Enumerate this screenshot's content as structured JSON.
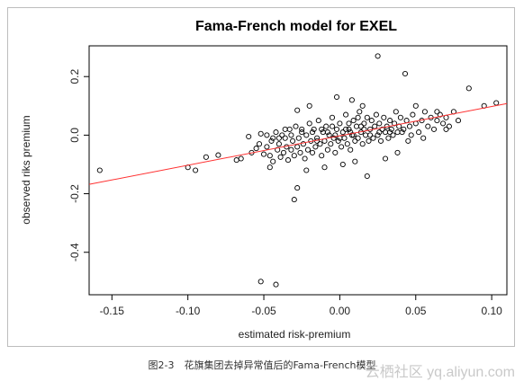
{
  "caption": "图2-3　花旗集团去掉异常值后的Fama-French模型",
  "watermark": "云栖社区 yq.aliyun.com",
  "chart_data": {
    "type": "scatter",
    "title": "Fama-French model for EXEL",
    "xlabel": "estimated risk-premium",
    "ylabel": "observed riks premium",
    "xlim": [
      -0.165,
      0.11
    ],
    "ylim": [
      -0.545,
      0.305
    ],
    "xticks": [
      -0.15,
      -0.1,
      -0.05,
      0.0,
      0.05,
      0.1
    ],
    "xtick_labels": [
      "-0.15",
      "-0.10",
      "-0.05",
      "0.00",
      "0.05",
      "0.10"
    ],
    "yticks": [
      -0.4,
      -0.2,
      0.0,
      0.2
    ],
    "ytick_labels": [
      "-0.4",
      "-0.2",
      "0.0",
      "0.2"
    ],
    "point_color": "#000000",
    "line_color": "#ff3030",
    "regression_line": {
      "x": [
        -0.165,
        0.11
      ],
      "y": [
        -0.168,
        0.108
      ]
    },
    "points": [
      [
        -0.158,
        -0.12
      ],
      [
        -0.1,
        -0.11
      ],
      [
        -0.095,
        -0.12
      ],
      [
        -0.088,
        -0.075
      ],
      [
        -0.08,
        -0.068
      ],
      [
        -0.068,
        -0.085
      ],
      [
        -0.065,
        -0.08
      ],
      [
        -0.06,
        -0.005
      ],
      [
        -0.058,
        -0.06
      ],
      [
        -0.055,
        -0.045
      ],
      [
        -0.053,
        -0.03
      ],
      [
        -0.052,
        0.005
      ],
      [
        -0.05,
        -0.065
      ],
      [
        -0.048,
        -0.04
      ],
      [
        -0.046,
        -0.07
      ],
      [
        -0.045,
        -0.02
      ],
      [
        -0.044,
        -0.09
      ],
      [
        -0.042,
        0.01
      ],
      [
        -0.041,
        -0.05
      ],
      [
        -0.04,
        -0.03
      ],
      [
        -0.039,
        -0.075
      ],
      [
        -0.038,
        0.0
      ],
      [
        -0.037,
        -0.06
      ],
      [
        -0.036,
        -0.01
      ],
      [
        -0.035,
        -0.04
      ],
      [
        -0.034,
        -0.085
      ],
      [
        -0.033,
        0.02
      ],
      [
        -0.032,
        -0.05
      ],
      [
        -0.031,
        -0.02
      ],
      [
        -0.03,
        -0.07
      ],
      [
        -0.029,
        0.03
      ],
      [
        -0.028,
        -0.04
      ],
      [
        -0.027,
        -0.01
      ],
      [
        -0.026,
        -0.06
      ],
      [
        -0.025,
        0.01
      ],
      [
        -0.024,
        -0.03
      ],
      [
        -0.023,
        -0.08
      ],
      [
        -0.022,
        0.0
      ],
      [
        -0.021,
        -0.05
      ],
      [
        -0.02,
        0.04
      ],
      [
        -0.019,
        -0.02
      ],
      [
        -0.018,
        -0.06
      ],
      [
        -0.017,
        0.02
      ],
      [
        -0.016,
        -0.04
      ],
      [
        -0.015,
        -0.01
      ],
      [
        -0.014,
        0.05
      ],
      [
        -0.013,
        -0.03
      ],
      [
        -0.012,
        -0.07
      ],
      [
        -0.011,
        0.01
      ],
      [
        -0.01,
        -0.02
      ],
      [
        -0.009,
        0.03
      ],
      [
        -0.008,
        -0.05
      ],
      [
        -0.007,
        0.0
      ],
      [
        -0.006,
        -0.03
      ],
      [
        -0.005,
        0.06
      ],
      [
        -0.004,
        -0.01
      ],
      [
        -0.003,
        -0.06
      ],
      [
        -0.002,
        0.02
      ],
      [
        -0.001,
        -0.02
      ],
      [
        0.0,
        0.04
      ],
      [
        0.001,
        -0.04
      ],
      [
        0.002,
        0.01
      ],
      [
        0.003,
        -0.01
      ],
      [
        0.004,
        0.07
      ],
      [
        0.005,
        -0.03
      ],
      [
        0.006,
        0.02
      ],
      [
        0.007,
        -0.05
      ],
      [
        0.008,
        0.0
      ],
      [
        0.009,
        0.05
      ],
      [
        0.01,
        -0.02
      ],
      [
        0.011,
        0.03
      ],
      [
        0.012,
        -0.01
      ],
      [
        0.013,
        0.08
      ],
      [
        0.014,
        0.01
      ],
      [
        0.015,
        -0.03
      ],
      [
        0.016,
        0.04
      ],
      [
        0.017,
        0.0
      ],
      [
        0.018,
        0.06
      ],
      [
        0.019,
        -0.02
      ],
      [
        0.02,
        0.02
      ],
      [
        0.021,
        0.05
      ],
      [
        0.022,
        -0.01
      ],
      [
        0.023,
        0.03
      ],
      [
        0.024,
        0.07
      ],
      [
        0.025,
        0.0
      ],
      [
        0.026,
        0.04
      ],
      [
        0.027,
        -0.02
      ],
      [
        0.028,
        0.02
      ],
      [
        0.029,
        0.06
      ],
      [
        0.03,
        0.01
      ],
      [
        0.031,
        0.03
      ],
      [
        0.032,
        -0.01
      ],
      [
        0.033,
        0.05
      ],
      [
        0.034,
        0.02
      ],
      [
        0.035,
        0.0
      ],
      [
        0.036,
        0.04
      ],
      [
        0.037,
        0.08
      ],
      [
        0.038,
        0.01
      ],
      [
        0.039,
        0.03
      ],
      [
        0.04,
        0.06
      ],
      [
        0.042,
        0.02
      ],
      [
        0.044,
        0.05
      ],
      [
        0.046,
        0.03
      ],
      [
        0.048,
        0.07
      ],
      [
        0.05,
        0.04
      ],
      [
        0.052,
        0.01
      ],
      [
        0.054,
        0.05
      ],
      [
        0.056,
        0.08
      ],
      [
        0.058,
        0.03
      ],
      [
        0.06,
        0.06
      ],
      [
        0.062,
        0.02
      ],
      [
        0.064,
        0.05
      ],
      [
        0.066,
        0.07
      ],
      [
        0.068,
        0.04
      ],
      [
        0.07,
        0.06
      ],
      [
        0.072,
        0.03
      ],
      [
        0.075,
        0.08
      ],
      [
        0.078,
        0.05
      ],
      [
        0.085,
        0.16
      ],
      [
        0.095,
        0.1
      ],
      [
        0.103,
        0.11
      ],
      [
        0.025,
        0.27
      ],
      [
        0.043,
        0.21
      ],
      [
        -0.002,
        0.13
      ],
      [
        0.008,
        0.12
      ],
      [
        -0.028,
        0.085
      ],
      [
        -0.02,
        0.1
      ],
      [
        0.015,
        0.1
      ],
      [
        -0.028,
        -0.18
      ],
      [
        -0.03,
        -0.22
      ],
      [
        -0.052,
        -0.5
      ],
      [
        -0.042,
        -0.51
      ],
      [
        -0.022,
        -0.12
      ],
      [
        -0.01,
        -0.11
      ],
      [
        0.002,
        -0.1
      ],
      [
        0.01,
        -0.09
      ],
      [
        0.018,
        -0.14
      ],
      [
        -0.046,
        -0.11
      ],
      [
        0.03,
        -0.08
      ],
      [
        0.038,
        -0.06
      ],
      [
        0.064,
        0.08
      ],
      [
        0.05,
        0.1
      ],
      [
        0.07,
        0.02
      ],
      [
        0.055,
        -0.01
      ],
      [
        0.045,
        -0.02
      ],
      [
        -0.005,
        0.03
      ],
      [
        -0.012,
        0.02
      ],
      [
        -0.018,
        0.01
      ],
      [
        -0.025,
        0.02
      ],
      [
        0.004,
        0.02
      ],
      [
        0.006,
        0.04
      ],
      [
        0.012,
        0.06
      ],
      [
        0.016,
        0.02
      ],
      [
        0.02,
        0.0
      ],
      [
        0.026,
        0.01
      ],
      [
        -0.008,
        0.01
      ],
      [
        -0.015,
        -0.02
      ],
      [
        -0.003,
        0.0
      ],
      [
        0.0,
        -0.01
      ],
      [
        0.007,
        0.01
      ],
      [
        0.014,
        0.03
      ],
      [
        -0.032,
        0.0
      ],
      [
        -0.036,
        0.02
      ],
      [
        -0.04,
        -0.01
      ],
      [
        0.033,
        0.01
      ],
      [
        0.041,
        0.01
      ],
      [
        0.047,
        0.0
      ],
      [
        -0.044,
        -0.01
      ],
      [
        -0.048,
        0.0
      ],
      [
        0.009,
        0.0
      ]
    ]
  }
}
